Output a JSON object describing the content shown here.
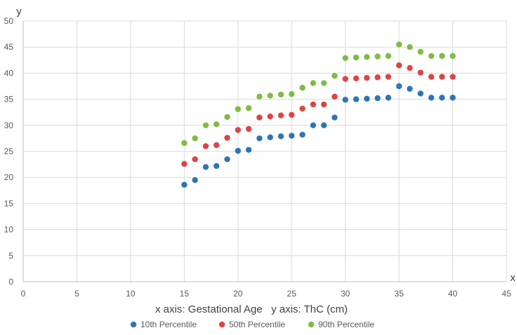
{
  "chart_data": {
    "type": "scatter",
    "title": "",
    "corner_labels": {
      "y": "y",
      "x": "x"
    },
    "caption": "x axis: Gestational Age   y axis: ThC (cm)",
    "xlim": [
      0,
      45
    ],
    "ylim": [
      0,
      50
    ],
    "x_ticks": [
      0,
      5,
      10,
      15,
      20,
      25,
      30,
      35,
      40,
      45
    ],
    "y_ticks": [
      0,
      5,
      10,
      15,
      20,
      25,
      30,
      35,
      40,
      45,
      50
    ],
    "grid": true,
    "legend_position": "bottom",
    "x": [
      15,
      16,
      17,
      18,
      19,
      20,
      21,
      22,
      23,
      24,
      25,
      26,
      27,
      28,
      29,
      30,
      31,
      32,
      33,
      34,
      35,
      36,
      37,
      38,
      39,
      40
    ],
    "series": [
      {
        "name": "10th Percentile",
        "color": "#2e75b6",
        "values": [
          18.6,
          19.5,
          22.0,
          22.2,
          23.5,
          25.1,
          25.3,
          27.5,
          27.7,
          27.9,
          28.0,
          28.2,
          30.0,
          30.0,
          31.5,
          34.9,
          35.0,
          35.1,
          35.2,
          35.3,
          37.5,
          37.0,
          36.1,
          35.3,
          35.3,
          35.3
        ]
      },
      {
        "name": "50th Percentile",
        "color": "#e04343",
        "values": [
          22.6,
          23.5,
          26.0,
          26.2,
          27.6,
          29.1,
          29.3,
          31.5,
          31.7,
          31.9,
          32.0,
          33.2,
          34.0,
          34.0,
          35.5,
          38.9,
          39.0,
          39.1,
          39.2,
          39.3,
          41.5,
          41.0,
          40.1,
          39.3,
          39.3,
          39.3
        ]
      },
      {
        "name": "90th Percentile",
        "color": "#7ebd43",
        "values": [
          26.6,
          27.5,
          30.0,
          30.2,
          31.6,
          33.1,
          33.3,
          35.5,
          35.7,
          35.9,
          36.0,
          37.2,
          38.1,
          38.1,
          39.5,
          42.9,
          43.0,
          43.1,
          43.2,
          43.3,
          45.5,
          45.0,
          44.1,
          43.3,
          43.3,
          43.3
        ]
      }
    ]
  }
}
